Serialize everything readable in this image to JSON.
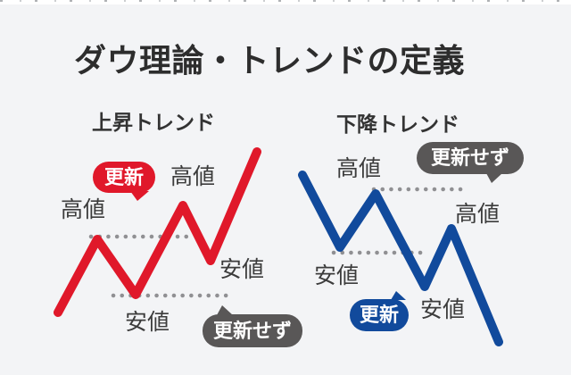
{
  "title": "ダウ理論・トレンドの定義",
  "colors": {
    "background": "#f3f4f6",
    "up": "#e0182a",
    "down": "#114a9c",
    "badge_gray": "#595757",
    "dots": "#909093"
  },
  "up_chart": {
    "heading": "上昇トレンド",
    "line_points": "65,350 109,268 152,330 205,230 236,292 288,170",
    "dotted_high": "102,265 213,265",
    "dotted_low": "127,331 261,331",
    "labels": {
      "high1": "高値",
      "high2": "高値",
      "low_right": "安値",
      "low_bottom": "安値"
    },
    "badges": {
      "update": "更新",
      "no_update": "更新せず"
    }
  },
  "down_chart": {
    "heading": "下降トレンド",
    "line_points": "339,196 381,277 421,217 476,321 506,256 559,383",
    "dotted_high": "419,212 523,212",
    "dotted_low": "374,283 479,283",
    "labels": {
      "high1": "高値",
      "high2": "高値",
      "low1": "安値",
      "low2": "安値"
    },
    "badges": {
      "update": "更新",
      "no_update": "更新せず"
    }
  }
}
